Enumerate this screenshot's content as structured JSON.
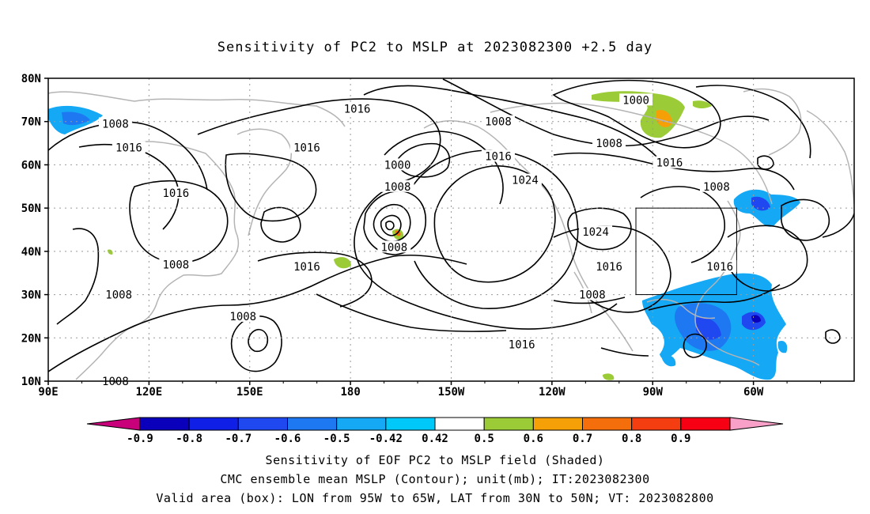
{
  "title": "Sensitivity of PC2 to MSLP at 2023082300 +2.5 day",
  "lat_labels": [
    "80N",
    "70N",
    "60N",
    "50N",
    "40N",
    "30N",
    "20N",
    "10N"
  ],
  "lon_labels": [
    "90E",
    "120E",
    "150E",
    "180",
    "150W",
    "120W",
    "90W",
    "60W"
  ],
  "contour_labels": [
    {
      "text": "1016",
      "lon": 182,
      "lat": 73
    },
    {
      "text": "1008",
      "lon": 110,
      "lat": 69.5
    },
    {
      "text": "1016",
      "lon": 114,
      "lat": 64
    },
    {
      "text": "1016",
      "lon": 128,
      "lat": 53.5
    },
    {
      "text": "1008",
      "lon": 128,
      "lat": 37
    },
    {
      "text": "1008",
      "lon": 111,
      "lat": 30
    },
    {
      "text": "1016",
      "lon": 167,
      "lat": 64
    },
    {
      "text": "1016",
      "lon": 167,
      "lat": 36.5
    },
    {
      "text": "1008",
      "lon": 148,
      "lat": 25
    },
    {
      "text": "1008",
      "lon": 110,
      "lat": 10
    },
    {
      "text": "1000",
      "lon": 194,
      "lat": 60
    },
    {
      "text": "1008",
      "lon": 194,
      "lat": 55
    },
    {
      "text": "1008",
      "lon": 193,
      "lat": 41
    },
    {
      "text": "1008",
      "lon": 224,
      "lat": 70
    },
    {
      "text": "1016",
      "lon": 224,
      "lat": 62
    },
    {
      "text": "1024",
      "lon": 232,
      "lat": 56.5
    },
    {
      "text": "1016",
      "lon": 231,
      "lat": 18.5
    },
    {
      "text": "1000",
      "lon": 265,
      "lat": 75
    },
    {
      "text": "1008",
      "lon": 257,
      "lat": 65
    },
    {
      "text": "1024",
      "lon": 253,
      "lat": 44.5
    },
    {
      "text": "1016",
      "lon": 257,
      "lat": 36.5
    },
    {
      "text": "1008",
      "lon": 252,
      "lat": 30
    },
    {
      "text": "1016",
      "lon": 275,
      "lat": 60.5
    },
    {
      "text": "1008",
      "lon": 289,
      "lat": 55
    },
    {
      "text": "1016",
      "lon": 290,
      "lat": 36.5
    }
  ],
  "valid_box": {
    "lon_min": 265,
    "lon_max": 295,
    "lat_min": 30,
    "lat_max": 50
  },
  "colorbar": {
    "colors": [
      "#c8007a",
      "#0a00bc",
      "#0f1fe6",
      "#1f48f0",
      "#1d78f2",
      "#14a8f5",
      "#00c8f8",
      "#ffffff",
      "#9bcc37",
      "#f6a008",
      "#f46e0c",
      "#f43e12",
      "#f80014",
      "#f9a0c8"
    ],
    "labels": [
      "-0.9",
      "-0.8",
      "-0.7",
      "-0.6",
      "-0.5",
      "-0.42",
      "0.42",
      "0.5",
      "0.6",
      "0.7",
      "0.8",
      "0.9"
    ]
  },
  "captions": {
    "line1": "Sensitivity of EOF PC2 to MSLP field (Shaded)",
    "line2": "CMC ensemble mean MSLP (Contour); unit(mb); IT:2023082300",
    "line3": "Valid area (box): LON from 95W to 65W, LAT from 30N to 50N; VT: 2023082800"
  }
}
